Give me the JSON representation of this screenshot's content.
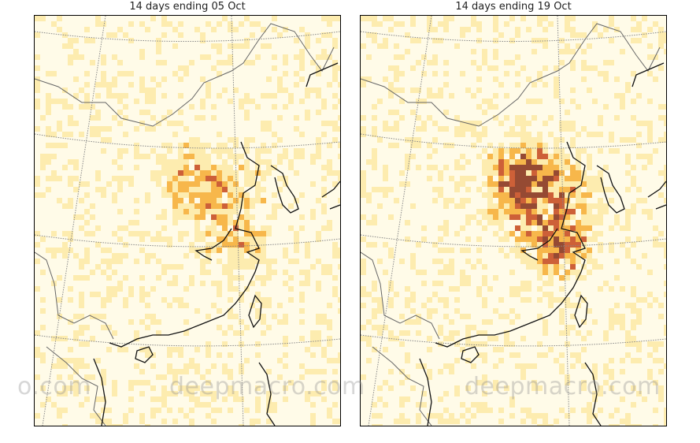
{
  "panels": [
    {
      "title": "14 days ending 05 Oct",
      "intensity": "low"
    },
    {
      "title": "14 days ending 19 Oct",
      "intensity": "high"
    }
  ],
  "watermark": "deepmacro.com",
  "watermark_partial": "o.com",
  "colors": {
    "background": "#fffbe8",
    "coast": "#111111",
    "border": "#666666",
    "graticule": "#888888",
    "heat_low": "#fde9a0",
    "heat_mid": "#f5a623",
    "heat_high": "#c0390b",
    "heat_max": "#7a1e05"
  }
}
